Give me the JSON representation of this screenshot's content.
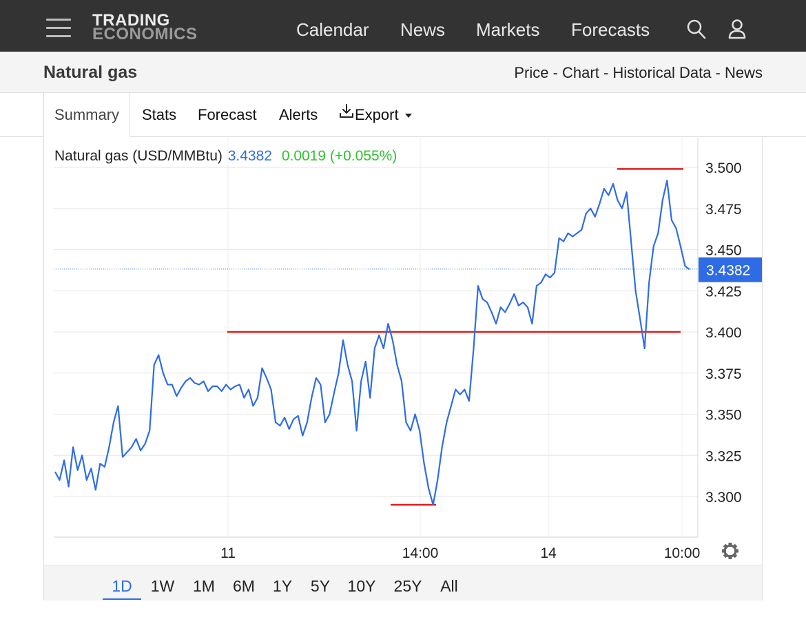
{
  "header": {
    "logo_line1": "TRADING",
    "logo_line2": "ECONOMICS",
    "nav": [
      "Calendar",
      "News",
      "Markets",
      "Forecasts"
    ],
    "icons": [
      "search-icon",
      "user-icon",
      "menu-icon"
    ]
  },
  "page": {
    "title": "Natural gas",
    "sublinks": "Price - Chart - Historical Data - News"
  },
  "tabs": [
    "Summary",
    "Stats",
    "Forecast",
    "Alerts",
    "Export"
  ],
  "legend": {
    "name": "Natural gas (USD/MMBtu)",
    "price": "3.4382",
    "change": "0.0019 (+0.055%)"
  },
  "ranges": [
    "1D",
    "1W",
    "1M",
    "6M",
    "1Y",
    "5Y",
    "10Y",
    "25Y",
    "All"
  ],
  "selected_range": "1D",
  "colors": {
    "line": "#2e6ce6",
    "annotation": "#e31a1a",
    "change": "#2ec32e",
    "price_tag_bg": "#2e6ce6"
  },
  "chart_data": {
    "type": "line",
    "unit": "USD/MMBtu",
    "x_ticks": [
      "11",
      "14:00",
      "14",
      "10:00"
    ],
    "y_ticks": [
      "3.300",
      "3.325",
      "3.350",
      "3.375",
      "3.400",
      "3.425",
      "3.450",
      "3.475",
      "3.500"
    ],
    "ylim": [
      3.275,
      3.52
    ],
    "last_price_label": "3.4382",
    "last_price": 3.4382,
    "grid": true,
    "series": [
      {
        "values": [
          3.315,
          3.31,
          3.322,
          3.306,
          3.33,
          3.316,
          3.325,
          3.31,
          3.317,
          3.304,
          3.32,
          3.318,
          3.33,
          3.345,
          3.355,
          3.324,
          3.327,
          3.33,
          3.335,
          3.328,
          3.332,
          3.34,
          3.38,
          3.386,
          3.375,
          3.368,
          3.368,
          3.361,
          3.366,
          3.37,
          3.372,
          3.369,
          3.368,
          3.37,
          3.364,
          3.367,
          3.367,
          3.364,
          3.368,
          3.365,
          3.367,
          3.368,
          3.36,
          3.365,
          3.355,
          3.36,
          3.378,
          3.372,
          3.365,
          3.345,
          3.343,
          3.348,
          3.341,
          3.347,
          3.349,
          3.337,
          3.345,
          3.36,
          3.372,
          3.368,
          3.345,
          3.35,
          3.363,
          3.375,
          3.395,
          3.38,
          3.37,
          3.34,
          3.37,
          3.382,
          3.36,
          3.39,
          3.398,
          3.39,
          3.405,
          3.395,
          3.38,
          3.37,
          3.345,
          3.34,
          3.35,
          3.34,
          3.32,
          3.305,
          3.295,
          3.31,
          3.33,
          3.345,
          3.355,
          3.365,
          3.362,
          3.365,
          3.358,
          3.39,
          3.428,
          3.42,
          3.418,
          3.412,
          3.405,
          3.415,
          3.412,
          3.417,
          3.423,
          3.416,
          3.418,
          3.415,
          3.405,
          3.428,
          3.43,
          3.435,
          3.433,
          3.436,
          3.457,
          3.455,
          3.46,
          3.458,
          3.46,
          3.462,
          3.472,
          3.475,
          3.47,
          3.478,
          3.487,
          3.483,
          3.49,
          3.48,
          3.475,
          3.485,
          3.455,
          3.425,
          3.408,
          3.39,
          3.43,
          3.452,
          3.46,
          3.48,
          3.492,
          3.468,
          3.463,
          3.452,
          3.44,
          3.438
        ]
      }
    ],
    "annotations": [
      {
        "kind": "resistance",
        "value": 3.499
      },
      {
        "kind": "support",
        "value": 3.4
      },
      {
        "kind": "low",
        "value": 3.295
      }
    ]
  }
}
